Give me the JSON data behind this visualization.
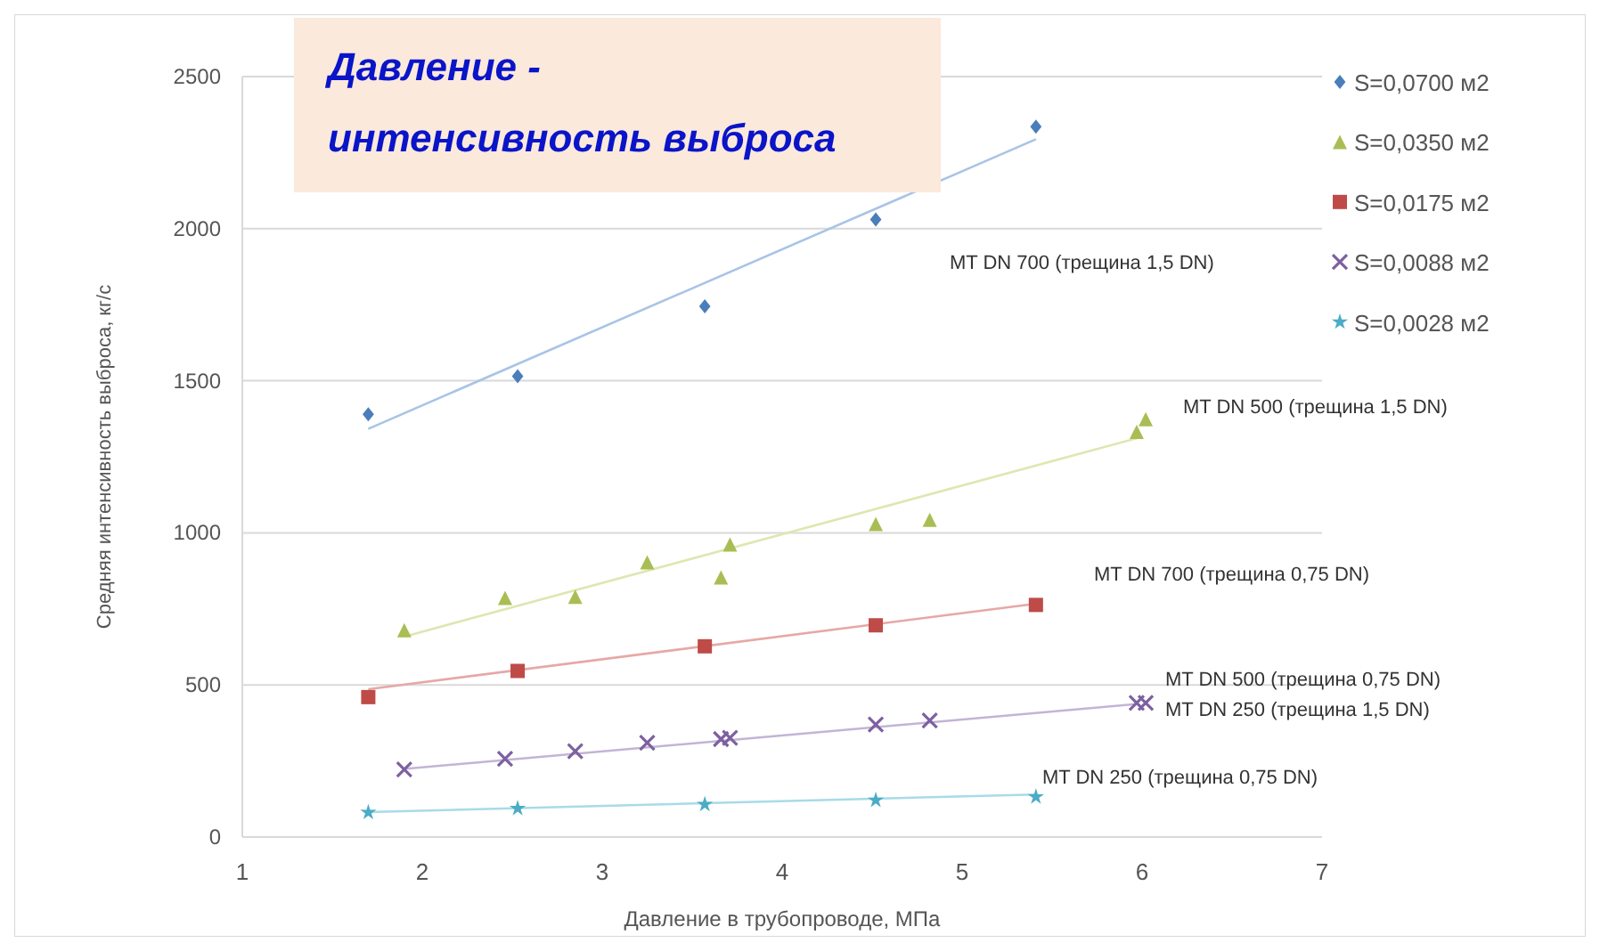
{
  "chart_data": {
    "type": "scatter",
    "title": "Давление - интенсивность выброса",
    "xlabel": "Давление в трубопроводе, МПа",
    "ylabel": "Средняя интенсивность выброса, кг/с",
    "xlim": [
      1,
      7
    ],
    "xticks": [
      1,
      2,
      3,
      4,
      5,
      6,
      7
    ],
    "ylim": [
      0,
      2500
    ],
    "yticks": [
      0,
      500,
      1000,
      1500,
      2000,
      2500
    ],
    "grid": "y",
    "legend": "top right",
    "series": [
      {
        "name": "S=0,0700 м2",
        "color": "#4a7ebb",
        "marker": "diamond",
        "x": [
          1.7,
          2.53,
          3.57,
          4.52,
          5.41
        ],
        "values": [
          1390,
          1515,
          1745,
          2030,
          2335
        ]
      },
      {
        "name": "S=0,0350 м2",
        "color": "#a9bd55",
        "marker": "triangle",
        "x": [
          1.9,
          2.46,
          2.85,
          3.25,
          3.66,
          3.71,
          4.52,
          4.82,
          5.97,
          6.02
        ],
        "values": [
          680,
          786,
          790,
          903,
          853,
          962,
          1029,
          1043,
          1332,
          1374
        ]
      },
      {
        "name": "S=0,0175 м2",
        "color": "#be4b48",
        "marker": "square",
        "x": [
          1.7,
          2.53,
          3.57,
          4.52,
          5.41
        ],
        "values": [
          460,
          546,
          627,
          696,
          763
        ]
      },
      {
        "name": "S=0,0088 м2",
        "color": "#7d60a0",
        "marker": "cross",
        "x": [
          1.9,
          2.46,
          2.85,
          3.25,
          3.66,
          3.71,
          4.52,
          4.82,
          5.97,
          6.02
        ],
        "values": [
          222,
          257,
          282,
          310,
          322,
          326,
          370,
          383,
          441,
          441
        ]
      },
      {
        "name": "S=0,0028 м2",
        "color": "#4bacc6",
        "marker": "star",
        "x": [
          1.7,
          2.53,
          3.57,
          4.52,
          5.41
        ],
        "values": [
          81,
          94,
          107,
          121,
          132
        ]
      },
      {
        "type": "line",
        "color": "#a8c4e6",
        "line_style": "solid",
        "x": [
          1.7,
          5.41
        ],
        "values": [
          1342,
          2294
        ]
      },
      {
        "type": "line",
        "color": "#dfe6b0",
        "line_style": "solid",
        "x": [
          1.9,
          5.97
        ],
        "values": [
          659,
          1311
        ]
      },
      {
        "type": "line",
        "color": "#e6a8a6",
        "line_style": "solid",
        "x": [
          1.7,
          5.41
        ],
        "values": [
          486,
          767
        ]
      },
      {
        "type": "line",
        "color": "#c2b4d6",
        "line_style": "solid",
        "x": [
          1.9,
          5.97
        ],
        "values": [
          224,
          437
        ]
      },
      {
        "type": "line",
        "color": "#a8dbe8",
        "line_style": "solid",
        "x": [
          1.7,
          5.41
        ],
        "values": [
          82,
          140
        ]
      }
    ],
    "annotations": [
      "MT DN 700 (трещина 1,5 DN)",
      "MT DN 500 (трещина 1,5 DN)",
      "MT DN 700 (трещина 0,75 DN)",
      "MT DN 500 (трещина 0,75 DN)",
      "MT DN 250 (трещина 1,5 DN)",
      "MT DN 250 (трещина 0,75 DN)"
    ]
  }
}
